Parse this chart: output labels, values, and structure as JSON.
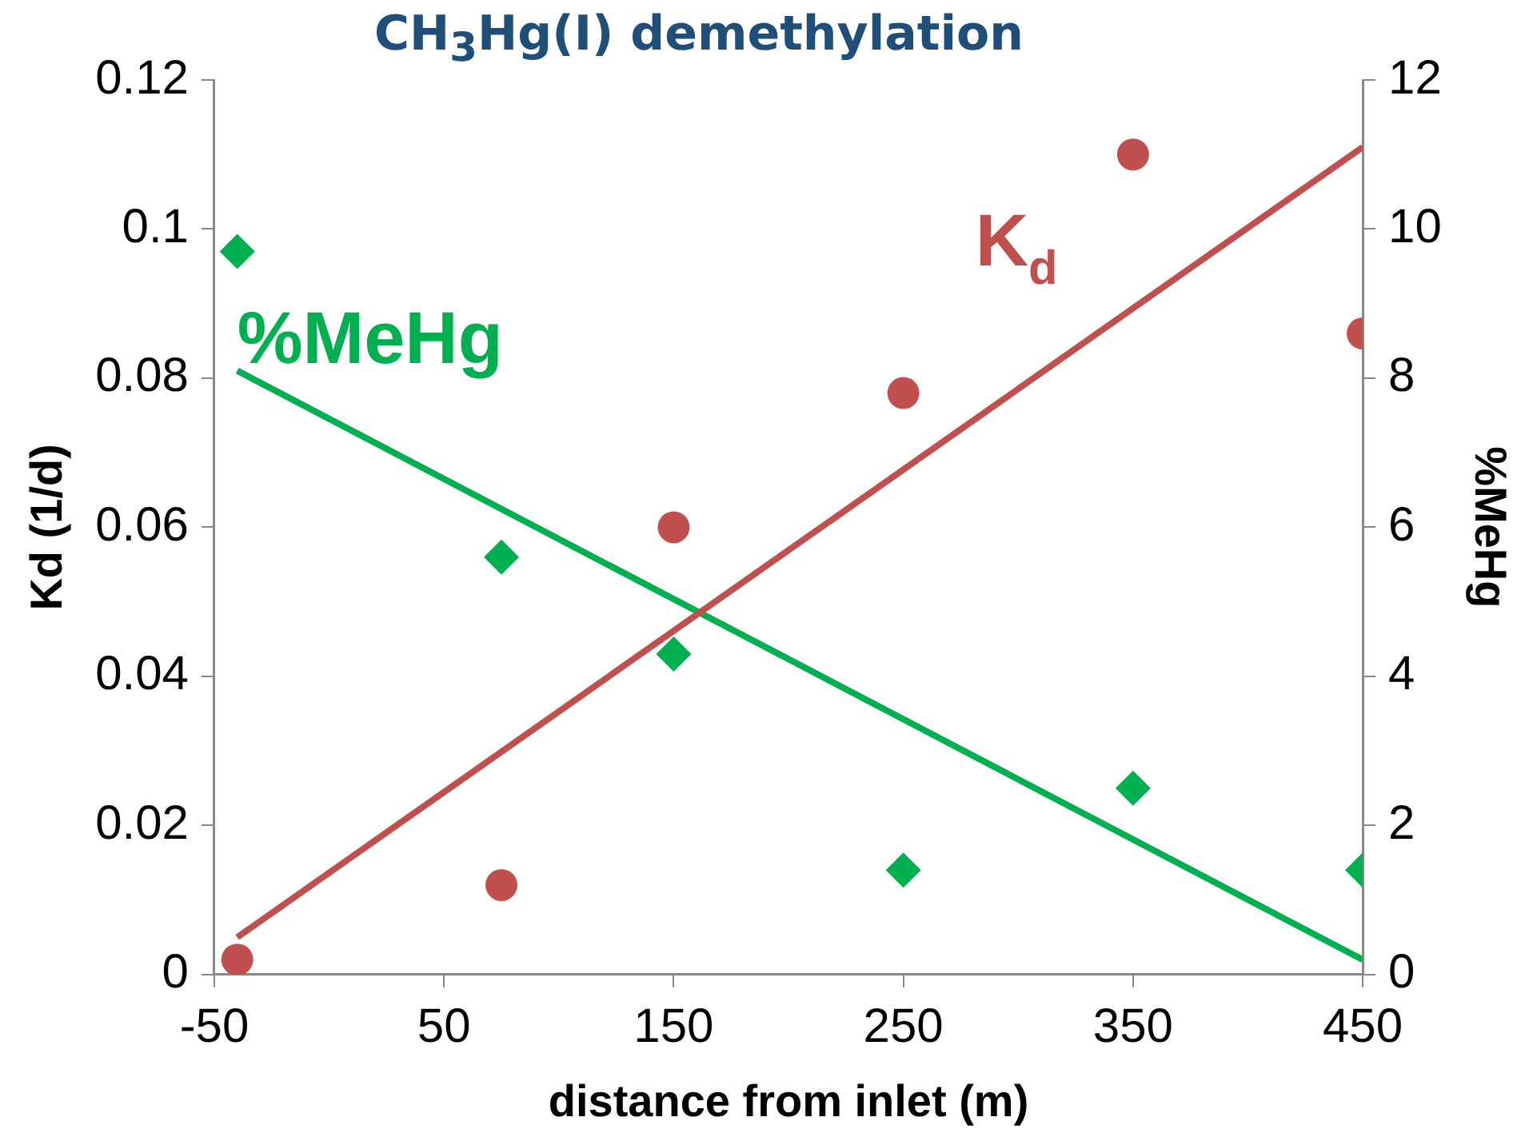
{
  "chart_data": {
    "type": "scatter",
    "title": "CH$_{3}$Hg(I) demethylation",
    "xlabel": "distance from inlet (m)",
    "ylabel": "Kd (1/d)",
    "y2label": "%MeHg",
    "xlim": [
      -50,
      450
    ],
    "xticks": [
      -50,
      50,
      150,
      250,
      350,
      450
    ],
    "ylim": [
      0,
      0.12
    ],
    "yticks": [
      0,
      0.02,
      0.04,
      0.06,
      0.08,
      0.1,
      0.12
    ],
    "y2lim": [
      0,
      12
    ],
    "y2ticks": [
      0,
      2,
      4,
      6,
      8,
      10,
      12
    ],
    "grid": false,
    "legend": false,
    "series": [
      {
        "name": "K$_{d}$",
        "type": "scatter",
        "marker": "circle",
        "color": "#c0504d",
        "x": [
          -40,
          75,
          150,
          250,
          350,
          450
        ],
        "values": [
          0.002,
          0.012,
          0.06,
          0.078,
          0.11,
          0.086
        ]
      },
      {
        "type": "line",
        "marker": "none",
        "color": "#c0504d",
        "x": [
          -40,
          450
        ],
        "values": [
          0.005,
          0.111
        ]
      },
      {
        "name": "%MeHg",
        "type": "scatter",
        "marker": "diamond",
        "axis": "y2",
        "color": "#00b050",
        "x": [
          -40,
          75,
          150,
          250,
          350,
          450
        ],
        "values": [
          9.7,
          5.6,
          4.3,
          1.4,
          2.5,
          1.4
        ]
      },
      {
        "type": "line",
        "marker": "none",
        "axis": "y2",
        "color": "#00b050",
        "x": [
          -40,
          450
        ],
        "values": [
          8.1,
          0.2
        ]
      }
    ]
  }
}
